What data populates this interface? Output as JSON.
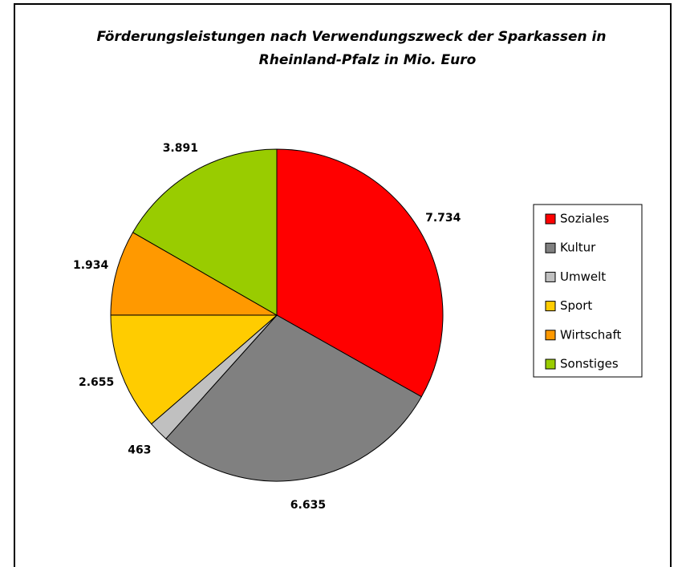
{
  "chart_data": {
    "type": "pie",
    "title": [
      "Förderungsleistungen nach Verwendungszweck der Sparkassen in",
      "Rheinland-Pfalz in Mio. Euro"
    ],
    "categories": [
      "Soziales",
      "Kultur",
      "Umwelt",
      "Sport",
      "Wirtschaft",
      "Sonstiges"
    ],
    "values": [
      7734,
      6635,
      463,
      2655,
      1934,
      3891
    ],
    "value_labels": [
      "7.734",
      "6.635",
      "463",
      "2.655",
      "1.934",
      "3.891"
    ],
    "colors": [
      "#ff0000",
      "#808080",
      "#c0c0c0",
      "#ffcc00",
      "#ff9900",
      "#99cc00"
    ],
    "legend": "right"
  }
}
